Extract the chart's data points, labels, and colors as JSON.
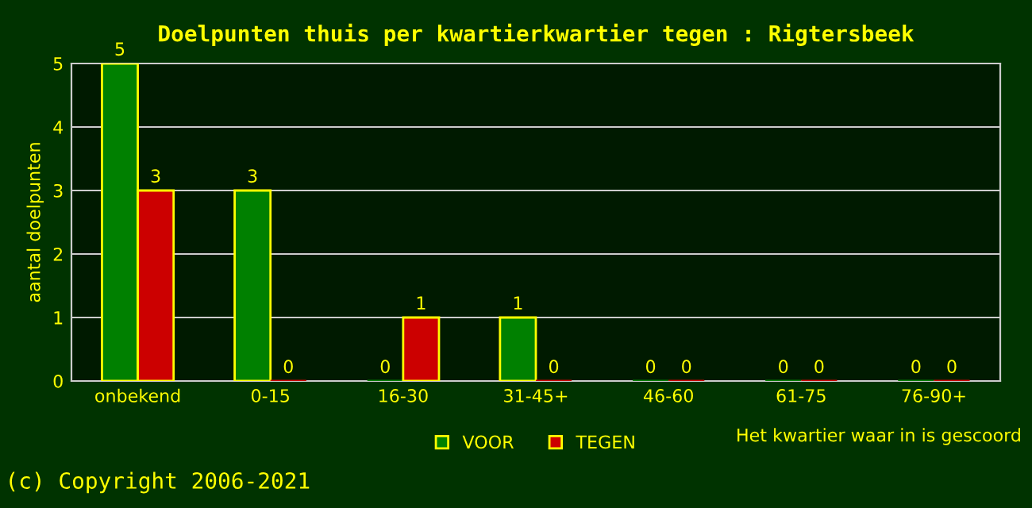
{
  "chart_data": {
    "type": "bar",
    "title": "Doelpunten thuis per kwartierkwartier tegen : Rigtersbeek",
    "categories": [
      "onbekend",
      "0-15",
      "16-30",
      "31-45+",
      "46-60",
      "61-75",
      "76-90+"
    ],
    "series": [
      {
        "name": "VOOR",
        "color": "#008000",
        "values": [
          5,
          3,
          0,
          1,
          0,
          0,
          0
        ]
      },
      {
        "name": "TEGEN",
        "color": "#cc0000",
        "values": [
          3,
          0,
          1,
          0,
          0,
          0,
          0
        ]
      }
    ],
    "xlabel": "Het kwartier waar in is gescoord",
    "ylabel": "aantal doelpunten",
    "ylim": [
      0,
      5
    ],
    "yticks": [
      0,
      1,
      2,
      3,
      4,
      5
    ],
    "grid": "y",
    "legend": "bottom",
    "data_labels": true,
    "annotations": [
      "(c) Copyright 2006-2021"
    ]
  }
}
